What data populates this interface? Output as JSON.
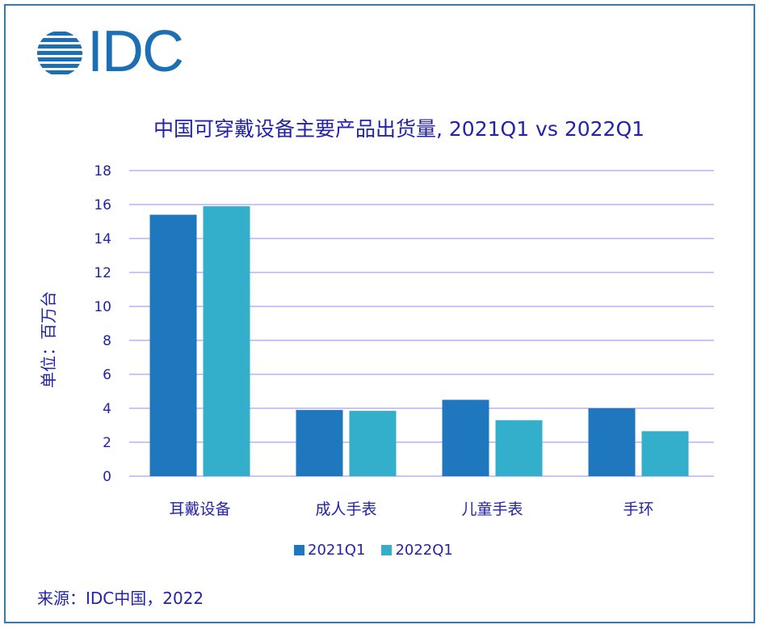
{
  "logo": {
    "text": "IDC"
  },
  "chart_data": {
    "type": "bar",
    "title": "中国可穿戴设备主要产品出货量, 2021Q1 vs 2022Q1",
    "ylabel": "单位：百万台",
    "xlabel": "",
    "categories": [
      "耳戴设备",
      "成人手表",
      "儿童手表",
      "手环"
    ],
    "series": [
      {
        "name": "2021Q1",
        "values": [
          15.4,
          3.9,
          4.5,
          4.0
        ],
        "color": "#1f78bd"
      },
      {
        "name": "2022Q1",
        "values": [
          15.9,
          3.85,
          3.3,
          2.65
        ],
        "color": "#33aecb"
      }
    ],
    "ylim": [
      0,
      18
    ],
    "yticks": [
      "0",
      "2",
      "4",
      "6",
      "8",
      "10",
      "12",
      "14",
      "16",
      "18"
    ],
    "grid": true,
    "legend_position": "bottom"
  },
  "source": "来源：IDC中国，2022"
}
